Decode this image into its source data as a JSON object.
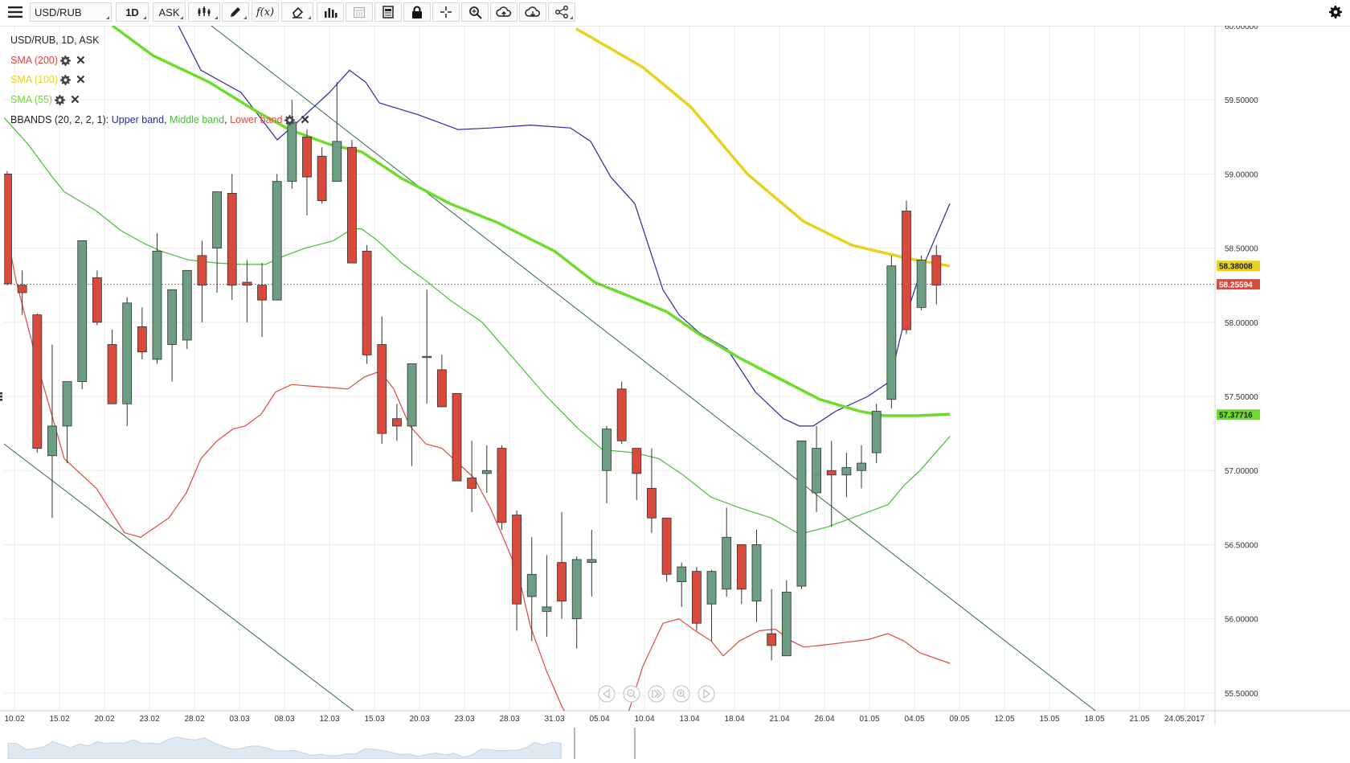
{
  "toolbar": {
    "symbol": "USD/RUB",
    "timeframe": "1D",
    "price_type": "ASK"
  },
  "legend": {
    "title": "USD/RUB, 1D, ASK",
    "sma200": "SMA (200)",
    "sma100": "SMA (100)",
    "sma55": "SMA (55)",
    "bbands_prefix": "BBANDS (20, 2, 2, 1): ",
    "bb_upper": "Upper band",
    "bb_middle": "Middle band",
    "bb_lower": "Lower band",
    "sep": ", "
  },
  "colors": {
    "up": "#6b9e83",
    "down": "#d84a3c",
    "sma200": "#e0463a",
    "sma100": "#e8d21f",
    "sma55": "#6edc2c",
    "bb_upper": "#2a2aa0",
    "bb_middle": "#44c132",
    "bb_lower": "#e04a3a",
    "trendline": "#2d6b45",
    "grid": "#ebebeb"
  },
  "chart_data": {
    "type": "candlestick",
    "title": "USD/RUB, 1D, ASK",
    "ylim": [
      55.38,
      60.0
    ],
    "y_ticks": [
      "60.00000",
      "59.50000",
      "59.00000",
      "58.50000",
      "58.00000",
      "57.50000",
      "57.00000",
      "56.50000",
      "56.00000",
      "55.50000"
    ],
    "x_ticks": [
      "10.02",
      "15.02",
      "20.02",
      "23.02",
      "28.02",
      "03.03",
      "08.03",
      "12.03",
      "15.03",
      "20.03",
      "23.03",
      "28.03",
      "31.03",
      "05.04",
      "10.04",
      "13.04",
      "18.04",
      "21.04",
      "26.04",
      "01.05",
      "04.05",
      "09.05",
      "12.05",
      "15.05",
      "18.05",
      "21.05",
      "24.05.2017"
    ],
    "current_price": "58.25594",
    "price_tags": [
      {
        "label": "58.38008",
        "value": 58.38008,
        "series": "SMA (100)"
      },
      {
        "label": "58.25594",
        "value": 58.25594,
        "series": "price"
      },
      {
        "label": "57.37716",
        "value": 57.37716,
        "series": "SMA (55)"
      }
    ],
    "candles": [
      {
        "date": "09.02",
        "o": 59.0,
        "h": 59.02,
        "l": 58.25,
        "c": 58.26
      },
      {
        "date": "10.02",
        "o": 58.25,
        "h": 58.35,
        "l": 58.05,
        "c": 58.2
      },
      {
        "date": "13.02",
        "o": 58.05,
        "h": 58.06,
        "l": 57.12,
        "c": 57.15
      },
      {
        "date": "14.02",
        "o": 57.1,
        "h": 57.85,
        "l": 56.68,
        "c": 57.3
      },
      {
        "date": "15.02",
        "o": 57.3,
        "h": 57.6,
        "l": 57.05,
        "c": 57.6
      },
      {
        "date": "16.02",
        "o": 57.6,
        "h": 58.55,
        "l": 57.55,
        "c": 58.55
      },
      {
        "date": "17.02",
        "o": 58.3,
        "h": 58.35,
        "l": 57.98,
        "c": 58.0
      },
      {
        "date": "20.02",
        "o": 57.85,
        "h": 57.95,
        "l": 57.45,
        "c": 57.45
      },
      {
        "date": "21.02",
        "o": 57.45,
        "h": 58.17,
        "l": 57.3,
        "c": 58.13
      },
      {
        "date": "22.02",
        "o": 57.97,
        "h": 58.1,
        "l": 57.75,
        "c": 57.8
      },
      {
        "date": "27.02",
        "o": 57.75,
        "h": 58.6,
        "l": 57.72,
        "c": 58.48
      },
      {
        "date": "28.02",
        "o": 57.85,
        "h": 58.22,
        "l": 57.6,
        "c": 58.22
      },
      {
        "date": "01.03",
        "o": 57.88,
        "h": 58.35,
        "l": 57.82,
        "c": 58.35
      },
      {
        "date": "02.03",
        "o": 58.45,
        "h": 58.55,
        "l": 58.0,
        "c": 58.25
      },
      {
        "date": "03.03",
        "o": 58.5,
        "h": 58.88,
        "l": 58.2,
        "c": 58.88
      },
      {
        "date": "06.03",
        "o": 58.87,
        "h": 59.0,
        "l": 58.15,
        "c": 58.25
      },
      {
        "date": "07.03",
        "o": 58.27,
        "h": 58.42,
        "l": 58.0,
        "c": 58.25
      },
      {
        "date": "08.03",
        "o": 58.25,
        "h": 58.4,
        "l": 57.9,
        "c": 58.15
      },
      {
        "date": "09.03",
        "o": 58.15,
        "h": 59.0,
        "l": 58.15,
        "c": 58.95
      },
      {
        "date": "10.03",
        "o": 58.95,
        "h": 59.5,
        "l": 58.9,
        "c": 59.35
      },
      {
        "date": "13.03",
        "o": 59.25,
        "h": 59.3,
        "l": 58.72,
        "c": 58.98
      },
      {
        "date": "14.03",
        "o": 59.12,
        "h": 59.18,
        "l": 58.8,
        "c": 58.82
      },
      {
        "date": "15.03",
        "o": 58.95,
        "h": 59.62,
        "l": 58.95,
        "c": 59.22
      },
      {
        "date": "16.03",
        "o": 59.18,
        "h": 59.23,
        "l": 58.4,
        "c": 58.4
      },
      {
        "date": "17.03",
        "o": 58.48,
        "h": 58.52,
        "l": 57.72,
        "c": 57.78
      },
      {
        "date": "20.03",
        "o": 57.85,
        "h": 58.04,
        "l": 57.18,
        "c": 57.25
      },
      {
        "date": "21.03",
        "o": 57.35,
        "h": 57.45,
        "l": 57.2,
        "c": 57.3
      },
      {
        "date": "22.03",
        "o": 57.3,
        "h": 57.72,
        "l": 57.03,
        "c": 57.72
      },
      {
        "date": "23.03",
        "o": 57.77,
        "h": 58.22,
        "l": 57.45,
        "c": 57.77
      },
      {
        "date": "24.03",
        "o": 57.68,
        "h": 57.78,
        "l": 57.43,
        "c": 57.43
      },
      {
        "date": "27.03",
        "o": 57.52,
        "h": 57.52,
        "l": 56.93,
        "c": 56.93
      },
      {
        "date": "28.03",
        "o": 56.95,
        "h": 57.2,
        "l": 56.72,
        "c": 56.88
      },
      {
        "date": "29.03",
        "o": 56.98,
        "h": 57.17,
        "l": 56.85,
        "c": 57.0
      },
      {
        "date": "30.03",
        "o": 57.15,
        "h": 57.17,
        "l": 56.6,
        "c": 56.65
      },
      {
        "date": "31.03",
        "o": 56.7,
        "h": 56.73,
        "l": 55.92,
        "c": 56.1
      },
      {
        "date": "03.04",
        "o": 56.15,
        "h": 56.55,
        "l": 55.85,
        "c": 56.3
      },
      {
        "date": "04.04",
        "o": 56.05,
        "h": 56.43,
        "l": 55.88,
        "c": 56.08
      },
      {
        "date": "05.04",
        "o": 56.38,
        "h": 56.72,
        "l": 56.0,
        "c": 56.12
      },
      {
        "date": "06.04",
        "o": 56.0,
        "h": 56.42,
        "l": 55.8,
        "c": 56.4
      },
      {
        "date": "07.04",
        "o": 56.38,
        "h": 56.6,
        "l": 56.15,
        "c": 56.4
      },
      {
        "date": "10.04",
        "o": 57.0,
        "h": 57.3,
        "l": 56.78,
        "c": 57.28
      },
      {
        "date": "11.04",
        "o": 57.55,
        "h": 57.6,
        "l": 57.18,
        "c": 57.2
      },
      {
        "date": "12.04",
        "o": 57.15,
        "h": 57.15,
        "l": 56.8,
        "c": 56.98
      },
      {
        "date": "13.04",
        "o": 56.88,
        "h": 57.15,
        "l": 56.58,
        "c": 56.68
      },
      {
        "date": "14.04",
        "o": 56.68,
        "h": 56.68,
        "l": 56.25,
        "c": 56.3
      },
      {
        "date": "17.04",
        "o": 56.25,
        "h": 56.38,
        "l": 56.08,
        "c": 56.35
      },
      {
        "date": "18.04",
        "o": 56.32,
        "h": 56.35,
        "l": 55.92,
        "c": 55.97
      },
      {
        "date": "19.04",
        "o": 56.1,
        "h": 56.33,
        "l": 55.85,
        "c": 56.32
      },
      {
        "date": "20.04",
        "o": 56.2,
        "h": 56.75,
        "l": 56.15,
        "c": 56.55
      },
      {
        "date": "21.04",
        "o": 56.5,
        "h": 56.5,
        "l": 56.1,
        "c": 56.2
      },
      {
        "date": "24.04",
        "o": 56.12,
        "h": 56.6,
        "l": 55.98,
        "c": 56.5
      },
      {
        "date": "25.04",
        "o": 55.9,
        "h": 56.2,
        "l": 55.72,
        "c": 55.82
      },
      {
        "date": "26.04",
        "o": 55.75,
        "h": 56.26,
        "l": 55.75,
        "c": 56.18
      },
      {
        "date": "27.04",
        "o": 56.22,
        "h": 57.2,
        "l": 56.2,
        "c": 57.2
      },
      {
        "date": "28.04",
        "o": 56.85,
        "h": 57.3,
        "l": 56.72,
        "c": 57.15
      },
      {
        "date": "02.05",
        "o": 57.0,
        "h": 57.2,
        "l": 56.62,
        "c": 56.97
      },
      {
        "date": "03.05",
        "o": 56.97,
        "h": 57.12,
        "l": 56.82,
        "c": 57.02
      },
      {
        "date": "04.05",
        "o": 57.0,
        "h": 57.17,
        "l": 56.88,
        "c": 57.05
      },
      {
        "date": "05.05",
        "o": 57.12,
        "h": 57.45,
        "l": 57.05,
        "c": 57.4
      },
      {
        "date": "08.05",
        "o": 57.48,
        "h": 58.45,
        "l": 57.42,
        "c": 58.38
      },
      {
        "date": "09.05",
        "o": 58.75,
        "h": 58.82,
        "l": 57.92,
        "c": 57.95
      },
      {
        "date": "10.05",
        "o": 58.1,
        "h": 58.45,
        "l": 58.08,
        "c": 58.42
      },
      {
        "date": "11.05",
        "o": 58.45,
        "h": 58.52,
        "l": 58.12,
        "c": 58.25
      }
    ],
    "series": [
      {
        "name": "SMA (100)",
        "points": [
          [
            717,
            59.98
          ],
          [
            800,
            59.72
          ],
          [
            860,
            59.45
          ],
          [
            930,
            59.0
          ],
          [
            1000,
            58.68
          ],
          [
            1060,
            58.52
          ],
          [
            1130,
            58.43
          ],
          [
            1182,
            58.38
          ]
        ]
      },
      {
        "name": "SMA (55)",
        "points": [
          [
            140,
            60.0
          ],
          [
            190,
            59.8
          ],
          [
            260,
            59.62
          ],
          [
            320,
            59.42
          ],
          [
            360,
            59.3
          ],
          [
            410,
            59.2
          ],
          [
            450,
            59.15
          ],
          [
            500,
            58.97
          ],
          [
            560,
            58.8
          ],
          [
            620,
            58.67
          ],
          [
            690,
            58.48
          ],
          [
            740,
            58.27
          ],
          [
            790,
            58.16
          ],
          [
            830,
            58.07
          ],
          [
            870,
            57.92
          ],
          [
            920,
            57.76
          ],
          [
            970,
            57.62
          ],
          [
            1020,
            57.48
          ],
          [
            1070,
            57.4
          ],
          [
            1100,
            57.37
          ],
          [
            1140,
            57.37
          ],
          [
            1182,
            57.38
          ]
        ]
      },
      {
        "name": "Upper band",
        "points": [
          [
            222,
            60.0
          ],
          [
            250,
            59.7
          ],
          [
            300,
            59.55
          ],
          [
            345,
            59.23
          ],
          [
            370,
            59.35
          ],
          [
            410,
            59.55
          ],
          [
            435,
            59.7
          ],
          [
            455,
            59.62
          ],
          [
            472,
            59.48
          ],
          [
            520,
            59.4
          ],
          [
            570,
            59.3
          ],
          [
            610,
            59.31
          ],
          [
            660,
            59.33
          ],
          [
            710,
            59.31
          ],
          [
            735,
            59.22
          ],
          [
            760,
            58.98
          ],
          [
            790,
            58.8
          ],
          [
            825,
            58.22
          ],
          [
            845,
            58.05
          ],
          [
            870,
            57.93
          ],
          [
            905,
            57.82
          ],
          [
            940,
            57.53
          ],
          [
            975,
            57.35
          ],
          [
            995,
            57.3
          ],
          [
            1012,
            57.3
          ],
          [
            1040,
            57.4
          ],
          [
            1080,
            57.5
          ],
          [
            1107,
            57.6
          ],
          [
            1125,
            58.0
          ],
          [
            1145,
            58.33
          ],
          [
            1182,
            58.8
          ]
        ]
      },
      {
        "name": "Middle band",
        "points": [
          [
            5,
            59.38
          ],
          [
            35,
            59.2
          ],
          [
            65,
            58.98
          ],
          [
            80,
            58.88
          ],
          [
            120,
            58.75
          ],
          [
            150,
            58.62
          ],
          [
            180,
            58.53
          ],
          [
            200,
            58.48
          ],
          [
            235,
            58.42
          ],
          [
            270,
            58.4
          ],
          [
            300,
            58.39
          ],
          [
            330,
            58.39
          ],
          [
            355,
            58.45
          ],
          [
            380,
            58.5
          ],
          [
            415,
            58.55
          ],
          [
            438,
            58.63
          ],
          [
            450,
            58.63
          ],
          [
            470,
            58.55
          ],
          [
            500,
            58.4
          ],
          [
            530,
            58.28
          ],
          [
            560,
            58.15
          ],
          [
            600,
            58.0
          ],
          [
            640,
            57.75
          ],
          [
            680,
            57.5
          ],
          [
            720,
            57.28
          ],
          [
            750,
            57.14
          ],
          [
            790,
            57.12
          ],
          [
            820,
            57.08
          ],
          [
            850,
            56.97
          ],
          [
            885,
            56.82
          ],
          [
            920,
            56.75
          ],
          [
            960,
            56.68
          ],
          [
            995,
            56.57
          ],
          [
            1030,
            56.62
          ],
          [
            1060,
            56.68
          ],
          [
            1105,
            56.77
          ],
          [
            1125,
            56.9
          ],
          [
            1145,
            57.0
          ],
          [
            1182,
            57.23
          ]
        ]
      },
      {
        "name": "Lower band",
        "points": [
          [
            5,
            58.7
          ],
          [
            20,
            58.28
          ],
          [
            50,
            57.65
          ],
          [
            80,
            57.08
          ],
          [
            120,
            56.88
          ],
          [
            155,
            56.58
          ],
          [
            175,
            56.55
          ],
          [
            210,
            56.68
          ],
          [
            232,
            56.85
          ],
          [
            250,
            57.08
          ],
          [
            270,
            57.2
          ],
          [
            290,
            57.28
          ],
          [
            305,
            57.3
          ],
          [
            325,
            57.38
          ],
          [
            343,
            57.53
          ],
          [
            363,
            57.58
          ],
          [
            410,
            57.56
          ],
          [
            433,
            57.55
          ],
          [
            453,
            57.63
          ],
          [
            473,
            57.67
          ],
          [
            490,
            57.55
          ],
          [
            510,
            57.3
          ],
          [
            530,
            57.18
          ],
          [
            550,
            57.15
          ],
          [
            570,
            57.05
          ],
          [
            590,
            56.95
          ],
          [
            610,
            56.75
          ],
          [
            630,
            56.5
          ],
          [
            645,
            56.3
          ],
          [
            660,
            55.95
          ],
          [
            680,
            55.65
          ],
          [
            700,
            55.4
          ],
          [
            710,
            55.32
          ],
          [
            778,
            55.3
          ],
          [
            800,
            55.68
          ],
          [
            825,
            55.97
          ],
          [
            845,
            56.0
          ],
          [
            865,
            55.92
          ],
          [
            885,
            55.85
          ],
          [
            900,
            55.75
          ],
          [
            920,
            55.85
          ],
          [
            945,
            55.92
          ],
          [
            965,
            55.93
          ],
          [
            985,
            55.85
          ],
          [
            1000,
            55.81
          ],
          [
            1020,
            55.82
          ],
          [
            1050,
            55.84
          ],
          [
            1080,
            55.86
          ],
          [
            1105,
            55.9
          ],
          [
            1125,
            55.85
          ],
          [
            1145,
            55.77
          ],
          [
            1182,
            55.7
          ]
        ]
      },
      {
        "name": "trendline-upper",
        "points": [
          [
            263,
            60.0
          ],
          [
            1363,
            55.38
          ]
        ]
      },
      {
        "name": "trendline-lower",
        "points": [
          [
            5,
            57.18
          ],
          [
            440,
            55.38
          ]
        ]
      }
    ]
  }
}
